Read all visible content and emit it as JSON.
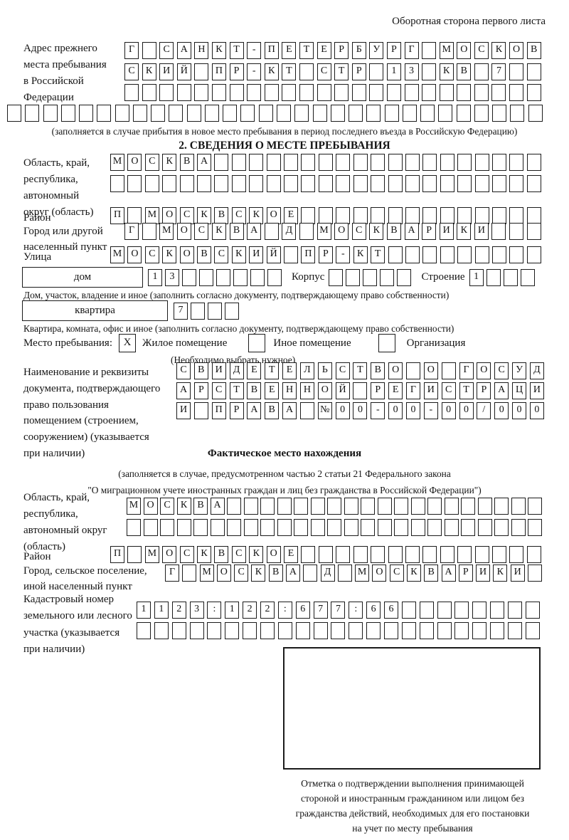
{
  "page": {
    "corner_note": "Оборотная сторона первого листа"
  },
  "prev_address": {
    "label_lines": [
      "Адрес прежнего",
      "места пребывания",
      "в Российской",
      "Федерации"
    ],
    "rows": [
      {
        "text": "Г САНКТ-ПЕТЕРБУРГ МОСКОВ",
        "n": 24
      },
      {
        "text": "СКИЙ ПР-КТ СТР 13 КВ 7",
        "n": 24
      },
      {
        "text": "",
        "n": 24
      }
    ],
    "overflow_row": {
      "text": "",
      "n": 30
    },
    "note": "(заполняется в случае прибытия в новое место пребывания в период последнего въезда в Российскую Федерацию)"
  },
  "section2": {
    "title": "2. СВЕДЕНИЯ О МЕСТЕ ПРЕБЫВАНИЯ",
    "region": {
      "label_lines": [
        "Область, край,",
        "республика,",
        "автономный",
        "округ (область)"
      ],
      "rows": [
        {
          "text": "МОСКВА",
          "n": 25
        },
        {
          "text": "",
          "n": 25
        }
      ]
    },
    "district": {
      "label": "Район",
      "row": {
        "text": "П МОСКВСКОЕ",
        "n": 25
      }
    },
    "city": {
      "label_lines": [
        "Город или другой",
        "населенный пункт"
      ],
      "row": {
        "text": "Г МОСКВА Д МОСКВАРИКИ",
        "n": 24
      }
    },
    "street": {
      "label": "Улица",
      "row": {
        "text": "МОСКОВСКИЙ ПР-КТ",
        "n": 25
      }
    },
    "house": {
      "box_label": "дом",
      "cells": {
        "text": "13",
        "n": 8
      },
      "korpus_label": "Корпус",
      "korpus_cells": {
        "text": "",
        "n": 5
      },
      "stroenie_label": "Строение",
      "stroenie_cells": {
        "text": "1",
        "n": 4
      }
    },
    "house_note": "Дом, участок, владение и иное (заполнить согласно документу, подтверждающему право собственности)",
    "apartment": {
      "box_label": "квартира",
      "cells": {
        "text": "7",
        "n": 4
      }
    },
    "apartment_note": "Квартира, комната, офис и иное (заполнить согласно документу, подтверждающему право собственности)",
    "stay": {
      "label": "Место пребывания:",
      "options": [
        {
          "mark": "X",
          "label": "Жилое помещение"
        },
        {
          "mark": "",
          "label": "Иное помещение"
        },
        {
          "mark": "",
          "label": "Организация"
        }
      ],
      "note": "(Необходимо выбрать нужное)"
    },
    "doc": {
      "label_lines": [
        "Наименование и реквизиты",
        "документа, подтверждающего",
        "право пользования",
        "помещением (строением,",
        "сооружением) (указывается",
        "при наличии)"
      ],
      "rows": [
        {
          "text": "СВИДЕТЕЛЬСТВО О ГОСУД",
          "n": 21
        },
        {
          "text": "АРСТВЕННОЙ РЕГИСТРАЦИ",
          "n": 21
        },
        {
          "text": "И ПРАВА №00-00-00/000",
          "n": 21
        }
      ]
    }
  },
  "actual": {
    "title": "Фактическое место нахождения",
    "note_lines": [
      "(заполняется в случае, предусмотренном частью 2 статьи 21 Федерального закона",
      "\"О миграционном учете иностранных граждан и лиц без гражданства в Российской Федерации\")"
    ],
    "region": {
      "label_lines": [
        "Область, край,",
        "республика,",
        "автономный округ",
        "(область)"
      ],
      "rows": [
        {
          "text": "МОСКВА",
          "n": 25
        },
        {
          "text": "",
          "n": 25
        }
      ]
    },
    "district": {
      "label": "Район",
      "row": {
        "text": "П МОСКВСКОЕ",
        "n": 25
      }
    },
    "city": {
      "label_lines": [
        "Город, сельское поселение,",
        "иной населенный пункт"
      ],
      "row": {
        "text": "Г МОСКВА Д МОСКВАРИКИ",
        "n": 22
      }
    },
    "cadastre": {
      "label_lines": [
        "Кадастровый номер",
        "земельного или лесного",
        "участка (указывается",
        "при наличии)"
      ],
      "rows": [
        {
          "text": "1123:122:677:66",
          "n": 23
        },
        {
          "text": "",
          "n": 23
        }
      ]
    }
  },
  "stamp": {
    "caption_lines": [
      "Отметка о подтверждении выполнения принимающей",
      "стороной и иностранным гражданином или лицом без",
      "гражданства действий, необходимых для его постановки",
      "на учет по месту пребывания"
    ]
  }
}
